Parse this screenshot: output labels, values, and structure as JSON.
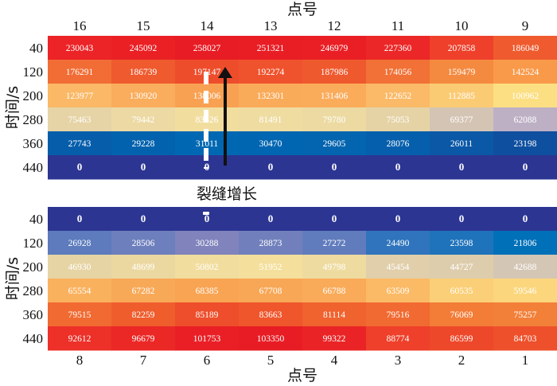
{
  "chart_data": [
    {
      "type": "heatmap",
      "panel": "top",
      "xlabel": "点号",
      "ylabel": "时间/s",
      "x_ticks": [
        "16",
        "15",
        "14",
        "13",
        "12",
        "11",
        "10",
        "9"
      ],
      "y_ticks": [
        "40",
        "120",
        "200",
        "280",
        "360",
        "440"
      ],
      "values": [
        [
          230043,
          245092,
          258027,
          251321,
          246979,
          227360,
          207858,
          186049
        ],
        [
          176291,
          186739,
          197147,
          192274,
          187986,
          174056,
          159479,
          142524
        ],
        [
          123977,
          130920,
          138006,
          132301,
          131406,
          122652,
          112885,
          100962
        ],
        [
          75463,
          79442,
          83326,
          81491,
          79780,
          75053,
          69377,
          62088
        ],
        [
          27743,
          29228,
          31011,
          30470,
          29605,
          28076,
          26011,
          23198
        ],
        [
          0,
          0,
          0,
          0,
          0,
          0,
          0,
          0
        ]
      ],
      "colorscale": [
        [
          0,
          "#2c3592"
        ],
        [
          23198,
          "#0f4f9f"
        ],
        [
          31000,
          "#0068b3"
        ],
        [
          62088,
          "#bdb0c5"
        ],
        [
          75000,
          "#e5d3a6"
        ],
        [
          83000,
          "#f1dea0"
        ],
        [
          101000,
          "#fcdf82"
        ],
        [
          124000,
          "#fbb866"
        ],
        [
          142524,
          "#f99a4b"
        ],
        [
          160000,
          "#f48a40"
        ],
        [
          186000,
          "#ef5b2e"
        ],
        [
          230000,
          "#ec2427"
        ],
        [
          258027,
          "#e81c24"
        ]
      ]
    },
    {
      "type": "heatmap",
      "panel": "bottom",
      "xlabel": "点号",
      "ylabel": "时间/s",
      "x_ticks": [
        "8",
        "7",
        "6",
        "5",
        "4",
        "3",
        "2",
        "1"
      ],
      "y_ticks": [
        "40",
        "120",
        "200",
        "280",
        "360",
        "440"
      ],
      "values": [
        [
          0,
          0,
          0,
          0,
          0,
          0,
          0,
          0
        ],
        [
          26928,
          28506,
          30288,
          28873,
          27272,
          24490,
          23598,
          21806
        ],
        [
          46930,
          48699,
          50802,
          51952,
          49798,
          45454,
          44727,
          42688
        ],
        [
          65554,
          67282,
          68385,
          67708,
          66788,
          63509,
          60535,
          59546
        ],
        [
          79515,
          82259,
          85189,
          83663,
          81114,
          79516,
          76069,
          75257
        ],
        [
          92612,
          96679,
          101753,
          103350,
          99322,
          88774,
          86599,
          84703
        ]
      ],
      "colorscale": [
        [
          0,
          "#2c3592"
        ],
        [
          21806,
          "#0070b9"
        ],
        [
          24490,
          "#2f74bc"
        ],
        [
          27000,
          "#5e7bbd"
        ],
        [
          30288,
          "#8083bc"
        ],
        [
          42688,
          "#d4c6b5"
        ],
        [
          46930,
          "#e6d4a4"
        ],
        [
          51952,
          "#f4e09c"
        ],
        [
          59546,
          "#fbd67c"
        ],
        [
          63509,
          "#fbba66"
        ],
        [
          67708,
          "#f8a756"
        ],
        [
          75257,
          "#f38039"
        ],
        [
          81000,
          "#f0632e"
        ],
        [
          85189,
          "#ee4e2b"
        ],
        [
          92612,
          "#ed3028"
        ],
        [
          103350,
          "#e81c24"
        ]
      ]
    }
  ],
  "annotation": "裂缝增长"
}
